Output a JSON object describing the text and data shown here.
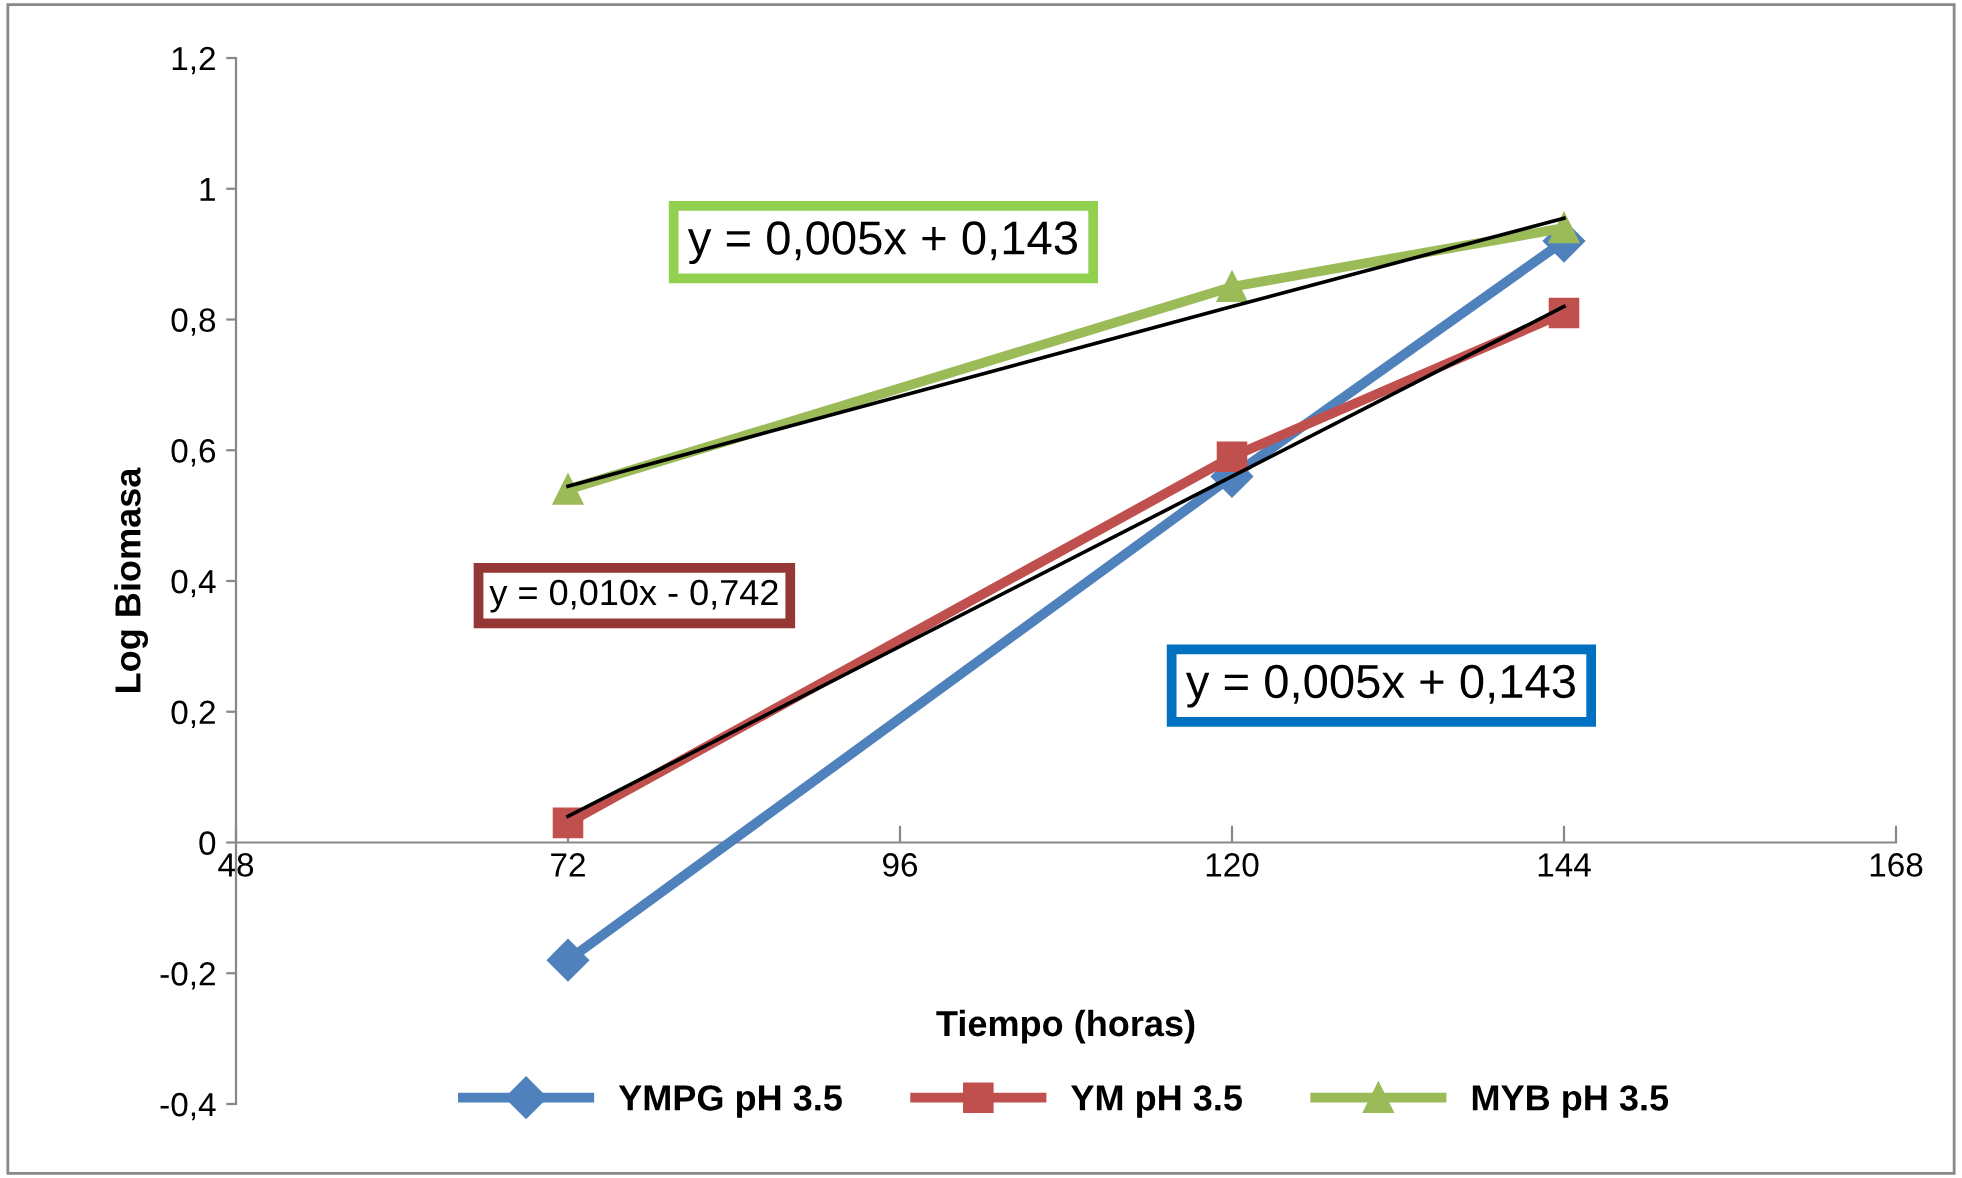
{
  "chart_data": {
    "type": "line",
    "xlabel": "Tiempo (horas)",
    "ylabel": "Log Biomasa",
    "x": [
      72,
      120,
      144
    ],
    "series": [
      {
        "name": "YMPG pH 3.5",
        "color": "#4f81bd",
        "values": [
          -0.18,
          0.56,
          0.92
        ],
        "marker": "diamond"
      },
      {
        "name": "YM pH 3.5",
        "color": "#c0504d",
        "values": [
          0.03,
          0.59,
          0.81
        ],
        "marker": "square"
      },
      {
        "name": "MYB pH 3.5",
        "color": "#9bbb59",
        "values": [
          0.54,
          0.85,
          0.94
        ],
        "marker": "triangle"
      },
      {
        "type": "line",
        "color": "#000000",
        "values": [
          0.545,
          0.82,
          0.955
        ]
      },
      {
        "type": "line",
        "color": "#000000",
        "values": [
          0.04,
          0.56,
          0.82
        ]
      }
    ],
    "xlim": [
      48,
      168
    ],
    "xticks": [
      48,
      72,
      96,
      120,
      144,
      168
    ],
    "ylim": [
      -0.4,
      1.2
    ],
    "yticks": [
      {
        "value": -0.4,
        "label": "-0,4"
      },
      {
        "value": -0.2,
        "label": "-0,2"
      },
      0,
      {
        "value": 0.2,
        "label": "0,2"
      },
      {
        "value": 0.4,
        "label": "0,4"
      },
      {
        "value": 0.6,
        "label": "0,6"
      },
      {
        "value": 0.8,
        "label": "0,8"
      },
      1,
      {
        "value": 1.2,
        "label": "1,2"
      }
    ],
    "grid": false,
    "legend": "bottom",
    "annotations": [
      "y = 0,005x + 0,143",
      "y = 0,010x - 0,742",
      "y = 0,005x + 0,143"
    ]
  }
}
